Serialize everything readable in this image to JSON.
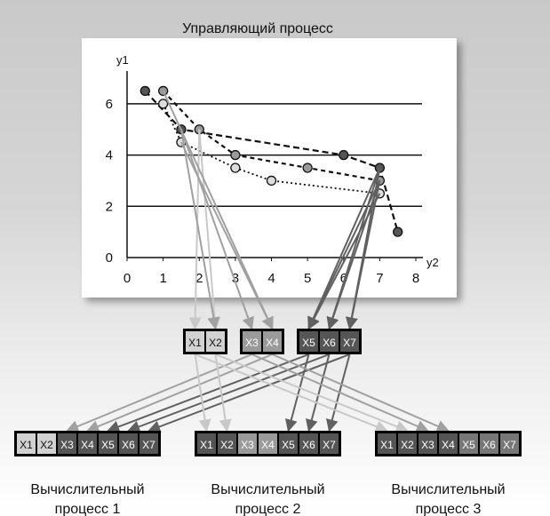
{
  "title": "Управляющий процесс",
  "chart_data": {
    "type": "line",
    "xlabel": "y2",
    "ylabel": "y1",
    "xlim": [
      0,
      8
    ],
    "ylim": [
      0,
      7
    ],
    "xticks": [
      "0",
      "1",
      "2",
      "3",
      "4",
      "5",
      "6",
      "7",
      "8"
    ],
    "yticks": [
      "0",
      "2",
      "4",
      "6"
    ],
    "grid": "horizontal",
    "series": [
      {
        "style": "dash-dark",
        "points": [
          [
            0.5,
            6.5
          ],
          [
            1.5,
            5.0
          ],
          [
            6.0,
            4.0
          ],
          [
            7.0,
            3.5
          ],
          [
            7.5,
            1.0
          ]
        ]
      },
      {
        "style": "dash-light",
        "points": [
          [
            1.0,
            6.5
          ],
          [
            2.0,
            5.0
          ],
          [
            3.0,
            4.0
          ],
          [
            5.0,
            3.5
          ],
          [
            7.0,
            3.0
          ]
        ]
      },
      {
        "style": "dot",
        "points": [
          [
            1.0,
            6.0
          ],
          [
            1.5,
            4.5
          ],
          [
            3.0,
            3.5
          ],
          [
            4.0,
            3.0
          ],
          [
            7.0,
            2.5
          ]
        ]
      }
    ]
  },
  "middle_groups": [
    {
      "cells": [
        "X1",
        "X2"
      ],
      "shade": "light"
    },
    {
      "cells": [
        "X3",
        "X4"
      ],
      "shade": "mid"
    },
    {
      "cells": [
        "X5",
        "X6",
        "X7"
      ],
      "shade": "dark"
    }
  ],
  "processes": [
    {
      "cells": [
        "X1",
        "X2",
        "X3",
        "X4",
        "X5",
        "X6",
        "X7"
      ],
      "shades": [
        "light",
        "light",
        "dark",
        "dark",
        "dark",
        "dark",
        "dark"
      ],
      "caption": [
        "Вычислительный",
        "процесс 1"
      ]
    },
    {
      "cells": [
        "X1",
        "X2",
        "X3",
        "X4",
        "X5",
        "X6",
        "X7"
      ],
      "shades": [
        "dark",
        "dark",
        "mid",
        "mid",
        "dark",
        "dark",
        "dark"
      ],
      "caption": [
        "Вычислительный",
        "процесс 2"
      ]
    },
    {
      "cells": [
        "X1",
        "X2",
        "X3",
        "X4",
        "X5",
        "X6",
        "X7"
      ],
      "shades": [
        "dark",
        "dark",
        "dark",
        "dark",
        "gray",
        "gray",
        "gray"
      ],
      "caption": [
        "Вычислительный",
        "процесс 3"
      ]
    }
  ],
  "colors": {
    "light": "#d2d2d2",
    "mid": "#9a9a9a",
    "dark": "#555555",
    "gray": "#777777",
    "arrow_light": "#c8c8c8",
    "arrow_mid": "#a0a0a0",
    "arrow_dark": "#606060"
  }
}
